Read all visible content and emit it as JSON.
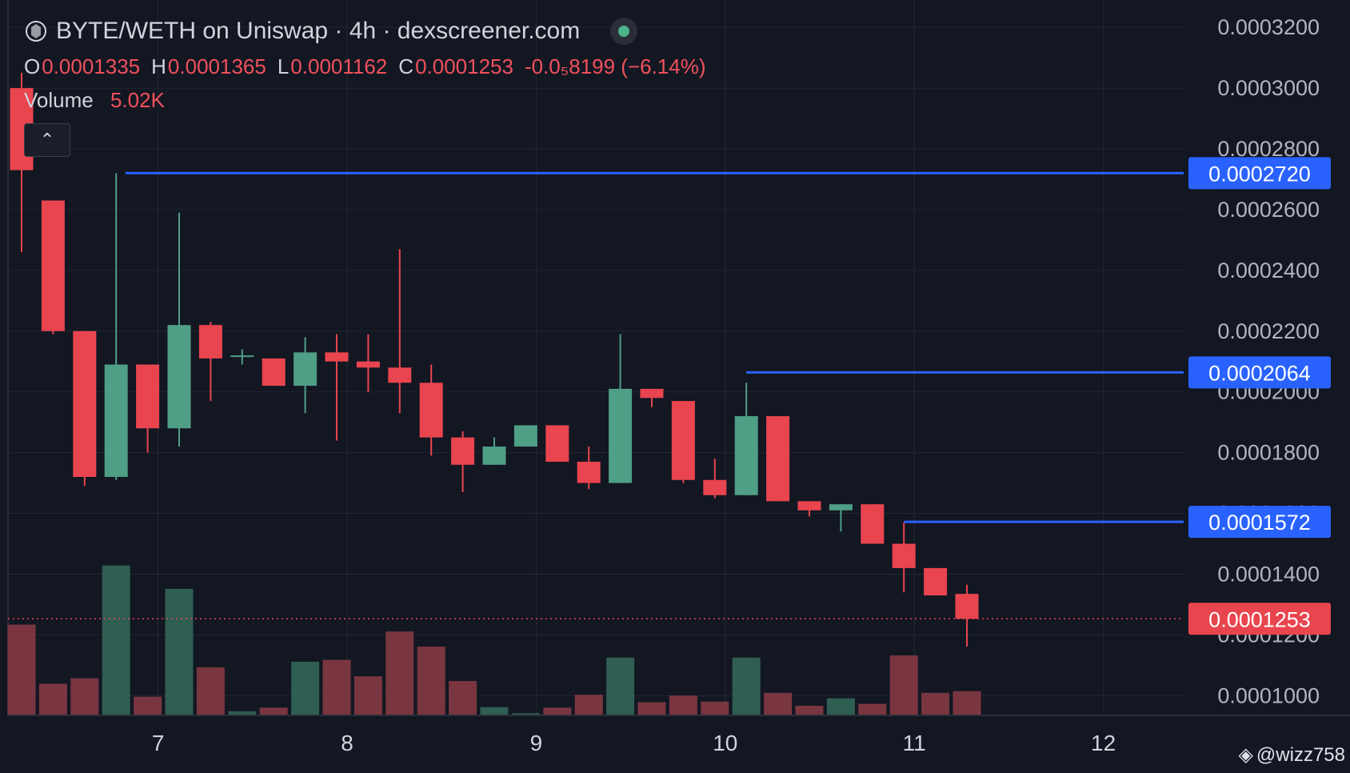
{
  "header": {
    "title": "BYTE/WETH on Uniswap · 4h · dexscreener.com",
    "status_color": "#4db38a"
  },
  "ohlc": {
    "o_label": "O",
    "o": "0.0001335",
    "h_label": "H",
    "h": "0.0001365",
    "l_label": "L",
    "l": "0.0001162",
    "c_label": "C",
    "c": "0.0001253",
    "change": "-0.0₅8199 (−6.14%)"
  },
  "volume": {
    "label": "Volume",
    "value": "5.02K"
  },
  "watermark": "@wizz758",
  "colors": {
    "up": "#4f9e86",
    "down": "#e8454f",
    "up_vol": "#2f5e52",
    "down_vol": "#7a3640",
    "line": "#2962ff",
    "label_bg": "#2962ff",
    "current_bg": "#e8454f",
    "bg": "#131722",
    "grid": "#232733"
  },
  "chart_data": {
    "type": "candlestick",
    "x_ticks": [
      {
        "label": "7",
        "t": 4.33
      },
      {
        "label": "8",
        "t": 10.33
      },
      {
        "label": "9",
        "t": 16.33
      },
      {
        "label": "10",
        "t": 22.33
      },
      {
        "label": "11",
        "t": 28.33
      },
      {
        "label": "12",
        "t": 34.33
      }
    ],
    "y_ticks": [
      "0.0003200",
      "0.0003000",
      "0.0002800",
      "0.0002600",
      "0.0002400",
      "0.0002200",
      "0.0002000",
      "0.0001800",
      "0.0001600",
      "0.0001400",
      "0.0001200",
      "0.0001000"
    ],
    "y_tick_values": [
      0.00032,
      0.0003,
      0.00028,
      0.00026,
      0.00024,
      0.00022,
      0.0002,
      0.00018,
      0.00016,
      0.00014,
      0.00012,
      0.0001
    ],
    "ylim": [
      9.35e-05,
      0.000329
    ],
    "candles": [
      {
        "o": 0.0003,
        "h": 0.000305,
        "l": 0.000246,
        "c": 0.000273,
        "v": 330
      },
      {
        "o": 0.000263,
        "h": 0.000263,
        "l": 0.000219,
        "c": 0.00022,
        "v": 115
      },
      {
        "o": 0.00022,
        "h": 0.00022,
        "l": 0.000169,
        "c": 0.000172,
        "v": 135
      },
      {
        "o": 0.000172,
        "h": 0.000272,
        "l": 0.000171,
        "c": 0.000209,
        "v": 545
      },
      {
        "o": 0.000209,
        "h": 0.000209,
        "l": 0.00018,
        "c": 0.000188,
        "v": 68
      },
      {
        "o": 0.000188,
        "h": 0.000259,
        "l": 0.000182,
        "c": 0.000222,
        "v": 460
      },
      {
        "o": 0.000222,
        "h": 0.000223,
        "l": 0.000197,
        "c": 0.000211,
        "v": 175
      },
      {
        "o": 0.000212,
        "h": 0.000214,
        "l": 0.000209,
        "c": 0.000212,
        "v": 15
      },
      {
        "o": 0.000211,
        "h": 0.000211,
        "l": 0.000202,
        "c": 0.000202,
        "v": 28
      },
      {
        "o": 0.000202,
        "h": 0.000218,
        "l": 0.000193,
        "c": 0.000213,
        "v": 195
      },
      {
        "o": 0.000213,
        "h": 0.000219,
        "l": 0.000184,
        "c": 0.00021,
        "v": 202
      },
      {
        "o": 0.00021,
        "h": 0.000219,
        "l": 0.0002,
        "c": 0.000208,
        "v": 142
      },
      {
        "o": 0.000208,
        "h": 0.000247,
        "l": 0.000193,
        "c": 0.000203,
        "v": 305
      },
      {
        "o": 0.000203,
        "h": 0.000209,
        "l": 0.000179,
        "c": 0.000185,
        "v": 250
      },
      {
        "o": 0.000185,
        "h": 0.000187,
        "l": 0.000167,
        "c": 0.000176,
        "v": 125
      },
      {
        "o": 0.000176,
        "h": 0.000185,
        "l": 0.000176,
        "c": 0.000182,
        "v": 30
      },
      {
        "o": 0.000182,
        "h": 0.000189,
        "l": 0.000182,
        "c": 0.000189,
        "v": 8
      },
      {
        "o": 0.000189,
        "h": 0.000189,
        "l": 0.000177,
        "c": 0.000177,
        "v": 28
      },
      {
        "o": 0.000177,
        "h": 0.000182,
        "l": 0.000168,
        "c": 0.00017,
        "v": 75
      },
      {
        "o": 0.00017,
        "h": 0.000219,
        "l": 0.00017,
        "c": 0.000201,
        "v": 210
      },
      {
        "o": 0.000201,
        "h": 0.000201,
        "l": 0.000195,
        "c": 0.000198,
        "v": 48
      },
      {
        "o": 0.000197,
        "h": 0.000197,
        "l": 0.00017,
        "c": 0.000171,
        "v": 72
      },
      {
        "o": 0.000171,
        "h": 0.000178,
        "l": 0.000165,
        "c": 0.000166,
        "v": 50
      },
      {
        "o": 0.000166,
        "h": 0.000203,
        "l": 0.000166,
        "c": 0.000192,
        "v": 210
      },
      {
        "o": 0.000192,
        "h": 0.000192,
        "l": 0.000164,
        "c": 0.000164,
        "v": 82
      },
      {
        "o": 0.000164,
        "h": 0.000164,
        "l": 0.000159,
        "c": 0.000161,
        "v": 35
      },
      {
        "o": 0.000161,
        "h": 0.000163,
        "l": 0.000154,
        "c": 0.000163,
        "v": 62
      },
      {
        "o": 0.000163,
        "h": 0.000163,
        "l": 0.00015,
        "c": 0.00015,
        "v": 42
      },
      {
        "o": 0.00015,
        "h": 0.000157,
        "l": 0.000134,
        "c": 0.000142,
        "v": 218
      },
      {
        "o": 0.000142,
        "h": 0.000142,
        "l": 0.000133,
        "c": 0.000133,
        "v": 82
      },
      {
        "o": 0.0001335,
        "h": 0.0001365,
        "l": 0.0001162,
        "c": 0.0001253,
        "v": 88
      }
    ],
    "price_lines": [
      {
        "value": 0.000272,
        "label": "0.0002720",
        "from_index": 3.3
      },
      {
        "value": 0.0002064,
        "label": "0.0002064",
        "from_index": 23
      },
      {
        "value": 0.0001572,
        "label": "0.0001572",
        "from_index": 28
      }
    ],
    "current_price": {
      "value": 0.0001253,
      "label": "0.0001253"
    }
  }
}
